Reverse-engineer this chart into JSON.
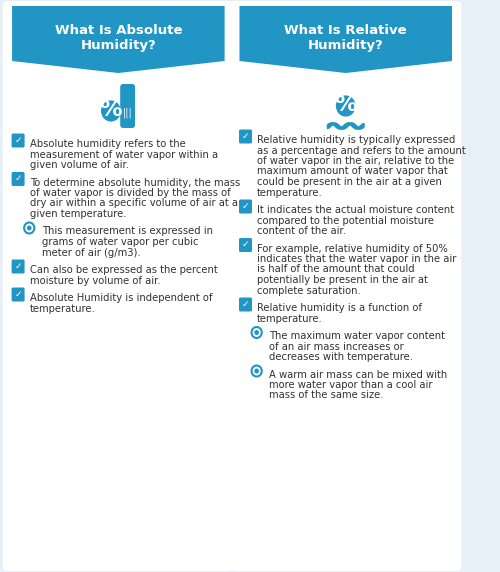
{
  "bg_color": "#e8f0f7",
  "panel_color": "#ffffff",
  "header_color": "#2196c4",
  "header_text_color": "#ffffff",
  "text_color": "#333333",
  "blue_color": "#2196c4",
  "light_blue": "#d6e8f5",
  "left_title": "What Is Absolute\nHumidity?",
  "right_title": "What Is Relative\nHumidity?",
  "left_bullets": [
    {
      "type": "check",
      "text": "Absolute humidity refers to the\nmeasurement of water vapor within a\ngiven volume of air."
    },
    {
      "type": "check",
      "text": "To determine absolute humidity, the mass\nof water vapor is divided by the mass of\ndry air within a specific volume of air at a\ngiven temperature."
    },
    {
      "type": "circle",
      "text": "This measurement is expressed in\ngrams of water vapor per cubic\nmeter of air (g/m3)."
    },
    {
      "type": "check",
      "text": "Can also be expressed as the percent\nmoisture by volume of air."
    },
    {
      "type": "check",
      "text": "Absolute Humidity is independent of\ntemperature."
    }
  ],
  "right_bullets": [
    {
      "type": "check",
      "text": "Relative humidity is typically expressed\nas a percentage and refers to the amount\nof water vapor in the air, relative to the\nmaximum amount of water vapor that\ncould be present in the air at a given\ntemperature."
    },
    {
      "type": "check",
      "text": "It indicates the actual moisture content\ncompared to the potential moisture\ncontent of the air."
    },
    {
      "type": "check",
      "text": "For example, relative humidity of 50%\nindicates that the water vapor in the air\nis half of the amount that could\npotentially be present in the air at\ncomplete saturation."
    },
    {
      "type": "check",
      "text": "Relative humidity is a function of\ntemperature."
    },
    {
      "type": "circle",
      "text": "The maximum water vapor content\nof an air mass increases or\ndecreases with temperature."
    },
    {
      "type": "circle",
      "text": "A warm air mass can be mixed with\nmore water vapor than a cool air\nmass of the same size."
    }
  ]
}
